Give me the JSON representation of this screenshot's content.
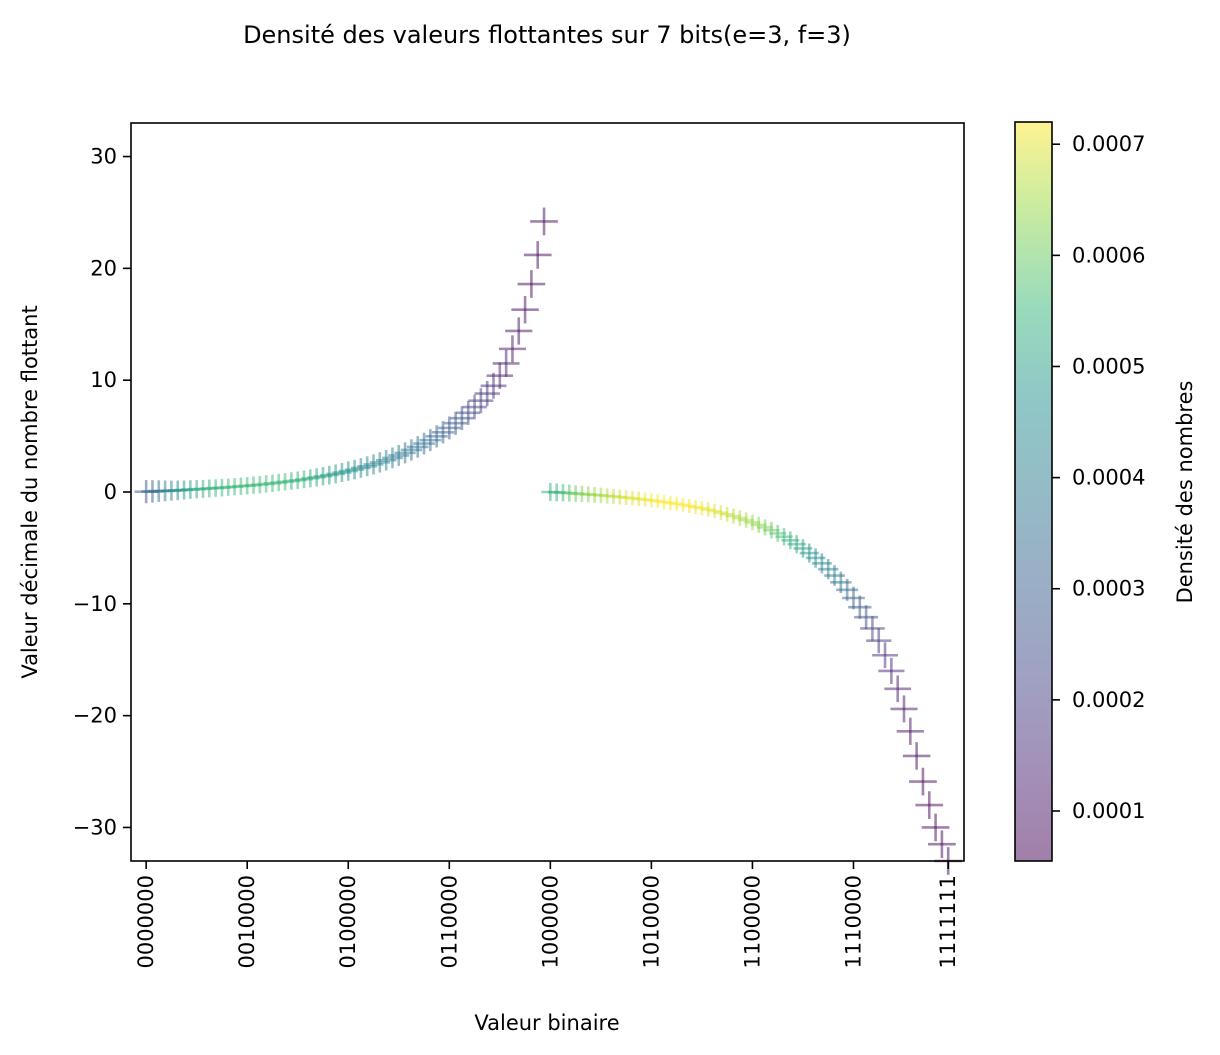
{
  "chart_data": {
    "type": "scatter",
    "title": "Densité des valeurs flottantes sur 7 bits(e=3, f=3)",
    "xlabel": "Valeur binaire",
    "ylabel": "Valeur décimale du nombre flottant",
    "xlim": [
      -2.4,
      129.5
    ],
    "ylim": [
      -33,
      33
    ],
    "grid": false,
    "marker": "+",
    "alpha": 0.5,
    "xticks": [
      {
        "value": 0,
        "label": "0000000"
      },
      {
        "value": 16,
        "label": "0010000"
      },
      {
        "value": 32,
        "label": "0100000"
      },
      {
        "value": 48,
        "label": "0110000"
      },
      {
        "value": 64,
        "label": "1000000"
      },
      {
        "value": 80,
        "label": "1010000"
      },
      {
        "value": 96,
        "label": "1100000"
      },
      {
        "value": 112,
        "label": "1110000"
      },
      {
        "value": 127,
        "label": "1111111"
      }
    ],
    "yticks": [
      -30,
      -20,
      -10,
      0,
      10,
      20,
      30
    ],
    "ytick_labels": [
      "−30",
      "−20",
      "−10",
      "0",
      "10",
      "20",
      "30"
    ],
    "x": [
      0,
      1,
      2,
      3,
      4,
      5,
      6,
      7,
      8,
      9,
      10,
      11,
      12,
      13,
      14,
      15,
      16,
      17,
      18,
      19,
      20,
      21,
      22,
      23,
      24,
      25,
      26,
      27,
      28,
      29,
      30,
      31,
      32,
      33,
      34,
      35,
      36,
      37,
      38,
      39,
      40,
      41,
      42,
      43,
      44,
      45,
      46,
      47,
      48,
      49,
      50,
      51,
      52,
      53,
      54,
      55,
      56,
      57,
      58,
      59,
      60,
      61,
      62,
      63,
      64,
      65,
      66,
      67,
      68,
      69,
      70,
      71,
      72,
      73,
      74,
      75,
      76,
      77,
      78,
      79,
      80,
      81,
      82,
      83,
      84,
      85,
      86,
      87,
      88,
      89,
      90,
      91,
      92,
      93,
      94,
      95,
      96,
      97,
      98,
      99,
      100,
      101,
      102,
      103,
      104,
      105,
      106,
      107,
      108,
      109,
      110,
      111,
      112,
      113,
      114,
      115,
      116,
      117,
      118,
      119,
      120,
      121,
      122,
      123,
      124,
      125,
      126,
      127
    ],
    "y": [
      0.03,
      0.05,
      0.08,
      0.1,
      0.12,
      0.15,
      0.18,
      0.22,
      0.25,
      0.28,
      0.32,
      0.35,
      0.39,
      0.43,
      0.47,
      0.52,
      0.56,
      0.61,
      0.66,
      0.72,
      0.78,
      0.84,
      0.91,
      0.98,
      1.05,
      1.13,
      1.22,
      1.31,
      1.41,
      1.51,
      1.62,
      1.74,
      1.87,
      2.0,
      2.15,
      2.3,
      2.47,
      2.65,
      2.84,
      3.05,
      3.27,
      3.5,
      3.76,
      4.03,
      4.33,
      4.64,
      4.98,
      5.34,
      5.73,
      6.15,
      6.6,
      7.08,
      7.6,
      8.17,
      8.8,
      9.5,
      10.4,
      11.5,
      12.8,
      14.4,
      16.3,
      18.6,
      21.2,
      24.2,
      0,
      -0.03,
      -0.06,
      -0.1,
      -0.14,
      -0.18,
      -0.22,
      -0.26,
      -0.3,
      -0.35,
      -0.4,
      -0.45,
      -0.5,
      -0.56,
      -0.62,
      -0.68,
      -0.75,
      -0.82,
      -0.9,
      -0.98,
      -1.06,
      -1.15,
      -1.25,
      -1.35,
      -1.46,
      -1.58,
      -1.71,
      -1.85,
      -2.0,
      -2.16,
      -2.33,
      -2.52,
      -2.72,
      -2.94,
      -3.17,
      -3.42,
      -3.7,
      -4.0,
      -4.32,
      -4.67,
      -5.05,
      -5.46,
      -5.9,
      -6.38,
      -6.9,
      -7.47,
      -8.08,
      -8.75,
      -9.48,
      -10.3,
      -11.2,
      -12.2,
      -13.3,
      -14.6,
      -16.0,
      -17.6,
      -19.4,
      -21.4,
      -23.6,
      -25.9,
      -28.0,
      -30.0,
      -31.5,
      -33.0
    ],
    "density": [
      0.00028,
      0.00032,
      0.00036,
      0.0004,
      0.00043,
      0.00046,
      0.00048,
      0.0005,
      0.00052,
      0.00053,
      0.00054,
      0.00055,
      0.00055,
      0.00056,
      0.00056,
      0.00056,
      0.00056,
      0.00056,
      0.00056,
      0.00056,
      0.00056,
      0.00056,
      0.00056,
      0.00055,
      0.00055,
      0.00054,
      0.00053,
      0.00052,
      0.00051,
      0.0005,
      0.00049,
      0.00048,
      0.00047,
      0.00046,
      0.00045,
      0.00044,
      0.00043,
      0.00042,
      0.00041,
      0.0004,
      0.00039,
      0.00038,
      0.00037,
      0.00036,
      0.00035,
      0.00034,
      0.00033,
      0.00032,
      0.0003,
      0.00028,
      0.00026,
      0.00024,
      0.00022,
      0.0002,
      0.00018,
      0.00016,
      0.00013,
      0.00011,
      0.0001,
      9e-05,
      8e-05,
      7e-05,
      7e-05,
      7e-05,
      0.00052,
      0.00054,
      0.00056,
      0.00058,
      0.0006,
      0.00062,
      0.00063,
      0.00064,
      0.00065,
      0.00066,
      0.00067,
      0.00068,
      0.00069,
      0.0007,
      0.0007,
      0.00071,
      0.00071,
      0.00072,
      0.00072,
      0.00072,
      0.00072,
      0.00072,
      0.00072,
      0.00071,
      0.00071,
      0.0007,
      0.0007,
      0.00069,
      0.00068,
      0.00067,
      0.00066,
      0.00065,
      0.00064,
      0.00063,
      0.00062,
      0.0006,
      0.00058,
      0.00056,
      0.00054,
      0.00052,
      0.0005,
      0.00048,
      0.00046,
      0.00044,
      0.00042,
      0.0004,
      0.00037,
      0.00034,
      0.00031,
      0.00028,
      0.00025,
      0.00022,
      0.00019,
      0.00016,
      0.00014,
      0.00012,
      0.0001,
      9e-05,
      8e-05,
      7e-05,
      7e-05,
      7e-05,
      7e-05,
      7e-05
    ],
    "colorbar": {
      "label": "Densité des nombres",
      "range": [
        5.5e-05,
        0.00072
      ],
      "ticks": [
        0.0001,
        0.0002,
        0.0003,
        0.0004,
        0.0005,
        0.0006,
        0.0007
      ],
      "tick_labels": [
        "0.0001",
        "0.0002",
        "0.0003",
        "0.0004",
        "0.0005",
        "0.0006",
        "0.0007"
      ],
      "colormap": "viridis",
      "alpha": 0.5
    }
  }
}
